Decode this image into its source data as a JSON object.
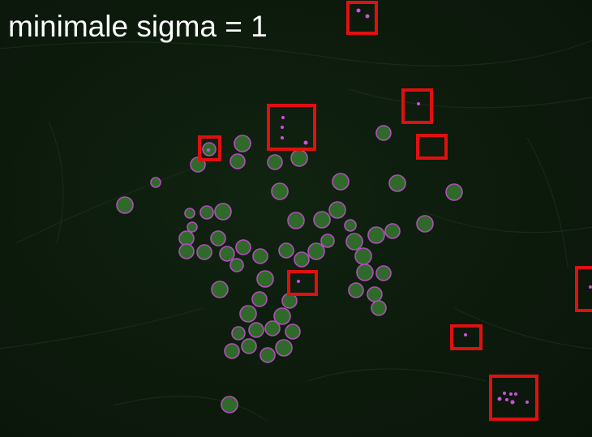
{
  "image": {
    "caption": "minimale sigma = 1",
    "colors": {
      "background": "#0d1c0d",
      "cell_fill": "#2f6a2a",
      "cell_ring": "#b04fb8",
      "detection_spot": "#d04ee0",
      "highlight_box": "#e01010",
      "caption_text": "#ffffff"
    }
  }
}
